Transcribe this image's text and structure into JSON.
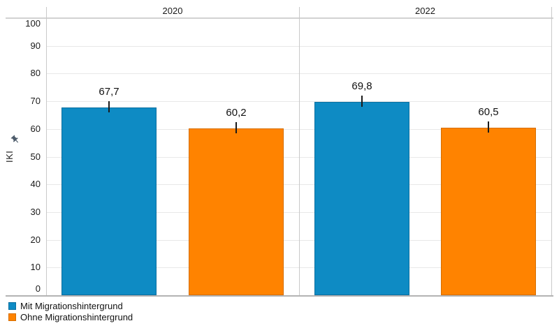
{
  "chart_data": {
    "type": "bar",
    "title": "",
    "ylabel": "IKI",
    "ylim": [
      0,
      100
    ],
    "yticks": [
      0,
      10,
      20,
      30,
      40,
      50,
      60,
      70,
      80,
      90,
      100
    ],
    "grid": true,
    "error_bars": true,
    "legend_position": "bottom-left",
    "categories": [
      "2020",
      "2022"
    ],
    "series": [
      {
        "name": "Mit Migrationshintergrund",
        "color": "#0e8bc4",
        "border_color": "#0a6fa0",
        "values": [
          67.7,
          69.8
        ],
        "value_labels": [
          "67,7",
          "69,8"
        ]
      },
      {
        "name": "Ohne Migrationshintergrund",
        "color": "#ff8300",
        "border_color": "#d66e00",
        "values": [
          60.2,
          60.5
        ],
        "value_labels": [
          "60,2",
          "60,5"
        ]
      }
    ]
  },
  "axis": {
    "title": "IKI",
    "pin_icon": "pushpin-icon",
    "pin_color": "#4d5c6b"
  },
  "style": {
    "grid_color": "#e8e8e8",
    "top_line_color": "#d2d2d2",
    "baseline_color": "#b3b3b3",
    "frame_line_color": "#c9c9c9",
    "errorbar_color": "#1a1a1a",
    "text_color": "#1a1a1a"
  }
}
